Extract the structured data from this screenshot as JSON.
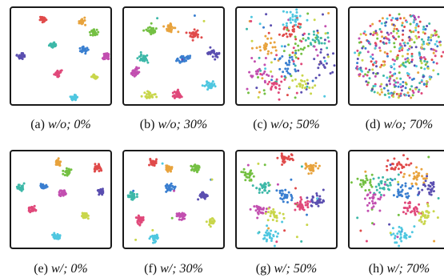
{
  "figure": {
    "panels": [
      {
        "label": "(a)",
        "condition": "w/o; 0%",
        "noise": 0.0,
        "spread": 4,
        "ring": false
      },
      {
        "label": "(b)",
        "condition": "w/o; 30%",
        "noise": 0.02,
        "spread": 6,
        "ring": false
      },
      {
        "label": "(c)",
        "condition": "w/o; 50%",
        "noise": 0.35,
        "spread": 14,
        "ring": false
      },
      {
        "label": "(d)",
        "condition": "w/o; 70%",
        "noise": 1.0,
        "spread": 0,
        "ring": true
      },
      {
        "label": "(e)",
        "condition": "w/; 0%",
        "noise": 0.0,
        "spread": 4,
        "ring": false
      },
      {
        "label": "(f)",
        "condition": "w/; 30%",
        "noise": 0.02,
        "spread": 5,
        "ring": false
      },
      {
        "label": "(g)",
        "condition": "w/; 50%",
        "noise": 0.06,
        "spread": 9,
        "ring": false
      },
      {
        "label": "(h)",
        "condition": "w/; 70%",
        "noise": 0.1,
        "spread": 12,
        "ring": false
      }
    ],
    "cluster_colors": [
      "#e04a4a",
      "#e8a33d",
      "#74c043",
      "#3db8a8",
      "#3a7fd0",
      "#5b4fb0",
      "#c24fb0",
      "#e0487a",
      "#c9d64b",
      "#4fc7e0"
    ]
  }
}
